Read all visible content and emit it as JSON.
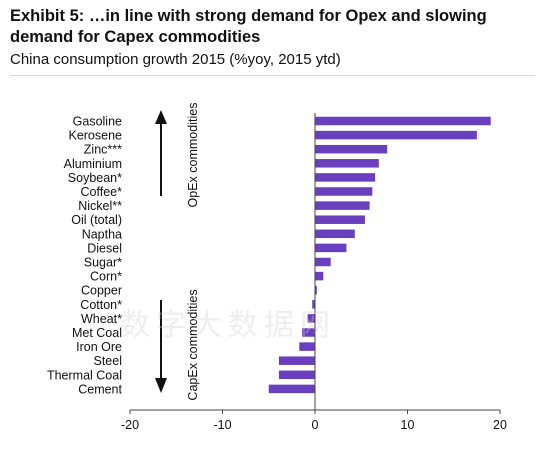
{
  "header": {
    "title": "Exhibit 5: …in line with strong demand for Opex and slowing demand for Capex commodities",
    "subtitle": "China consumption growth 2015 (%yoy, 2015 ytd)"
  },
  "chart_data": {
    "type": "bar",
    "orientation": "horizontal",
    "categories": [
      "Gasoline",
      "Kerosene",
      "Zinc***",
      "Aluminium",
      "Soybean*",
      "Coffee*",
      "Nickel**",
      "Oil (total)",
      "Naptha",
      "Diesel",
      "Sugar*",
      "Corn*",
      "Copper",
      "Cotton*",
      "Wheat*",
      "Met Coal",
      "Iron Ore",
      "Steel",
      "Thermal Coal",
      "Cement"
    ],
    "values": [
      19.0,
      17.5,
      7.8,
      6.9,
      6.5,
      6.2,
      5.9,
      5.4,
      4.3,
      3.4,
      1.7,
      0.9,
      0.2,
      -0.3,
      -0.8,
      -1.4,
      -1.7,
      -3.9,
      -3.9,
      -5.0
    ],
    "xlim": [
      -20,
      20
    ],
    "xticks": [
      -20,
      -10,
      0,
      10,
      20
    ],
    "bar_color": "#6a3fbf",
    "group_labels": {
      "opex": "OpEx commodities",
      "capex": "CapEx commodities"
    },
    "watermark": "数字大数据网"
  }
}
